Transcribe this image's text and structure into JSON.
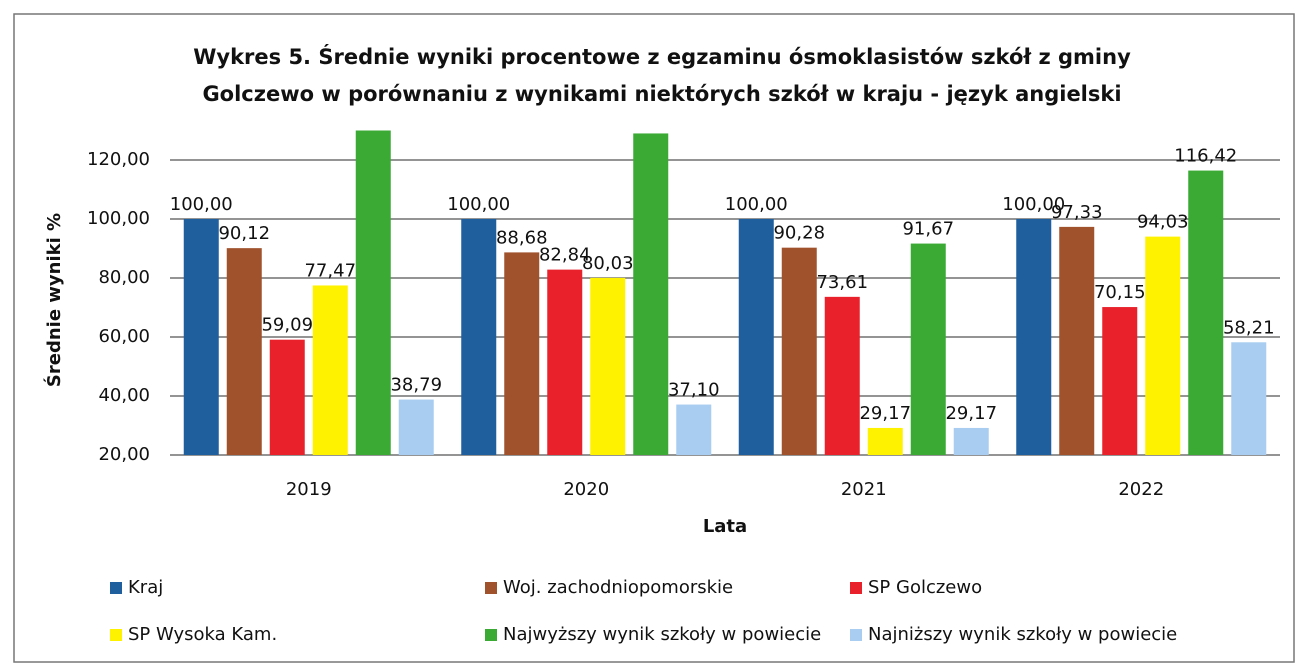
{
  "chart_data": {
    "type": "bar",
    "title": [
      "Wykres 5.  Średnie wyniki procentowe z egzaminu ósmoklasistów szkół z gminy",
      "Golczewo w porównaniu  z wynikami niektórych szkół w kraju  - język angielski"
    ],
    "ylabel": "Średnie wyniki %",
    "xlabel": "Lata",
    "categories": [
      "2019",
      "2020",
      "2021",
      "2022"
    ],
    "ylim": [
      20,
      130
    ],
    "yticks": [
      {
        "value": 20,
        "label": "20,00"
      },
      {
        "value": 40,
        "label": "40,00"
      },
      {
        "value": 60,
        "label": "60,00"
      },
      {
        "value": 80,
        "label": "80,00"
      },
      {
        "value": 100,
        "label": "100,00"
      },
      {
        "value": 120,
        "label": "120,00"
      }
    ],
    "grid": true,
    "series": [
      {
        "name": "Kraj",
        "color": "#1f5f9e",
        "values": [
          100,
          100,
          100,
          100
        ],
        "value_labels": [
          "100,00",
          "100,00",
          "100,00",
          "100,00"
        ]
      },
      {
        "name": "Woj. zachodniopomorskie",
        "color": "#a0522d",
        "values": [
          90.12,
          88.68,
          90.28,
          97.33
        ],
        "value_labels": [
          "90,12",
          "88,68",
          "90,28",
          "97,33"
        ]
      },
      {
        "name": "SP Golczewo",
        "color": "#e8212a",
        "values": [
          59.09,
          82.84,
          73.61,
          70.15
        ],
        "value_labels": [
          "59,09",
          "82,84",
          "73,61",
          "70,15"
        ]
      },
      {
        "name": "SP Wysoka Kam.",
        "color": "#fff200",
        "values": [
          77.47,
          80.03,
          29.17,
          94.03
        ],
        "value_labels": [
          "77,47",
          "80,03",
          "29,17",
          "94,03"
        ]
      },
      {
        "name": "Najwyższy wynik szkoły w powiecie",
        "color": "#3aaa35",
        "values": [
          130,
          129,
          91.67,
          116.42
        ],
        "value_labels": [
          null,
          null,
          "91,67",
          "116,42"
        ]
      },
      {
        "name": "Najniższy wynik szkoły w powiecie",
        "color": "#a8cdf0",
        "values": [
          38.79,
          37.1,
          29.17,
          58.21
        ],
        "value_labels": [
          "38,79",
          "37,10",
          "29,17",
          "58,21"
        ]
      }
    ]
  }
}
